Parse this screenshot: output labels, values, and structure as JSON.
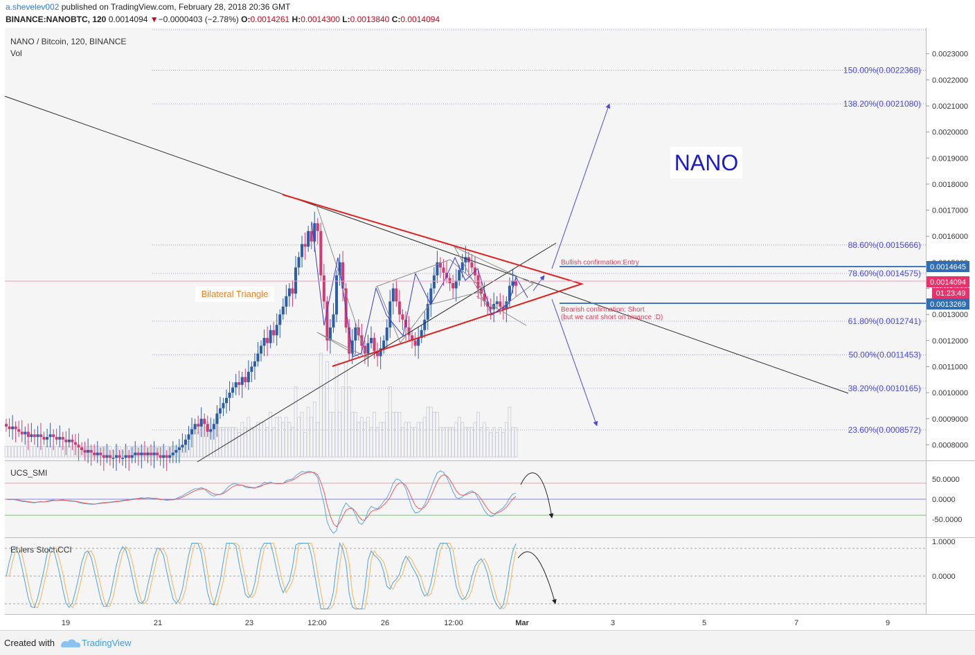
{
  "header": {
    "author": "a.shevelev002",
    "published": " published on TradingView.com, February 28, 2018 20:36 GMT",
    "symbol": "BINANCE:NANOBTC, 120",
    "last": "0.0014094",
    "change_arrow": "▼",
    "change": "−0.0000403 (−2.78%)",
    "o_label": "O:",
    "o": "0.0014261",
    "h_label": "H:",
    "h": "0.0014300",
    "l_label": "L:",
    "l": "0.0013840",
    "c_label": "C:",
    "c": "0.0014094"
  },
  "panes": {
    "main_title": "NANO / Bitcoin, 120, BINANCE",
    "vol_label": "Vol",
    "smi_label": "UCS_SMI",
    "cci_label": "Ehlers StochCCI"
  },
  "annotations": {
    "nano": "NANO",
    "triangle": "Bilateral Triangle",
    "bullish": "Bullish confirmation:Entry",
    "bearish1": "Bearish confirmation: Short",
    "bearish2": "(but we cant short on binance :D)"
  },
  "footer": {
    "created": "Created with",
    "brand": "TradingView"
  },
  "colors": {
    "up": "#2a5ea9",
    "down": "#d23a73",
    "triangle": "#e02020",
    "fib": "#4a4ad8",
    "trend": "#2a2a2a",
    "label_blue": "#2f6db5",
    "label_red": "#e8326b",
    "smi_a": "#f05a5a",
    "smi_b": "#5aa6e6"
  },
  "chart_data": [
    {
      "type": "candlestick",
      "title": "NANO / Bitcoin, 120, BINANCE",
      "x_ticks": [
        "19",
        "21",
        "23",
        "12:00",
        "26",
        "12:00",
        "Mar",
        "3",
        "5",
        "7",
        "9"
      ],
      "ylim": [
        0.00074,
        0.0024
      ],
      "y_ticks": [
        "0.0023000",
        "0.0022000",
        "0.0021000",
        "0.0020000",
        "0.0019000",
        "0.0018000",
        "0.0017000",
        "0.0016000",
        "0.0015000",
        "0.0014000",
        "0.0013000",
        "0.0012000",
        "0.0011000",
        "0.0010000",
        "0.0009000",
        "0.0008000"
      ],
      "price_labels": {
        "entry": "0.0014645",
        "last": "0.0014094",
        "countdown": "01:23:49",
        "short": "0.0013269"
      },
      "fib_levels": [
        {
          "label": "150.00%(0.0022368)",
          "value": 0.0022368
        },
        {
          "label": "138.20%(0.0021080)",
          "value": 0.002108
        },
        {
          "label": "88.60%(0.0015666)",
          "value": 0.0015666
        },
        {
          "label": "78.60%(0.0014575)",
          "value": 0.0014575
        },
        {
          "label": "61.80%(0.0012741)",
          "value": 0.0012741
        },
        {
          "label": "50.00%(0.0011453)",
          "value": 0.0011453
        },
        {
          "label": "38.20%(0.0010165)",
          "value": 0.0010165
        },
        {
          "label": "23.60%(0.0008572)",
          "value": 0.0008572
        }
      ],
      "close": [
        0.00087,
        0.00086,
        0.00087,
        0.00086,
        0.00085,
        0.00084,
        0.00085,
        0.00083,
        0.00084,
        0.00083,
        0.00084,
        0.00083,
        0.00082,
        0.00083,
        0.00084,
        0.00083,
        0.00082,
        0.00083,
        0.00082,
        0.00081,
        0.00082,
        0.00081,
        0.0008,
        0.00079,
        0.00078,
        0.00077,
        0.00078,
        0.00077,
        0.00076,
        0.00077,
        0.00076,
        0.00075,
        0.00076,
        0.00075,
        0.00075,
        0.00076,
        0.00075,
        0.00075,
        0.00076,
        0.00075,
        0.00076,
        0.00077,
        0.00076,
        0.00077,
        0.00076,
        0.00077,
        0.00076,
        0.00077,
        0.00076,
        0.00075,
        0.00076,
        0.00075,
        0.00076,
        0.00077,
        0.00078,
        0.00079,
        0.0008,
        0.00082,
        0.00084,
        0.00086,
        0.00088,
        0.00087,
        0.0009,
        0.00088,
        0.00085,
        0.00086,
        0.00088,
        0.00092,
        0.00094,
        0.00096,
        0.00098,
        0.001,
        0.00102,
        0.00104,
        0.00103,
        0.00106,
        0.00104,
        0.00108,
        0.0011,
        0.00112,
        0.00115,
        0.00118,
        0.00121,
        0.00119,
        0.00124,
        0.00122,
        0.00126,
        0.0013,
        0.00133,
        0.00137,
        0.0014,
        0.00138,
        0.00148,
        0.00152,
        0.00157,
        0.00156,
        0.00162,
        0.00158,
        0.00165,
        0.00162,
        0.00145,
        0.00135,
        0.0012,
        0.00125,
        0.0013,
        0.00145,
        0.0015,
        0.0014,
        0.00125,
        0.00115,
        0.0012,
        0.00125,
        0.00122,
        0.00118,
        0.00115,
        0.00119,
        0.00121,
        0.00116,
        0.00114,
        0.00117,
        0.0012,
        0.00125,
        0.00135,
        0.0014,
        0.00135,
        0.0013,
        0.00128,
        0.00125,
        0.00122,
        0.0012,
        0.00118,
        0.00121,
        0.00124,
        0.00128,
        0.00134,
        0.0014,
        0.00145,
        0.0015,
        0.00148,
        0.00146,
        0.00144,
        0.00142,
        0.0014,
        0.00143,
        0.00147,
        0.0015,
        0.00152,
        0.0015,
        0.00148,
        0.00145,
        0.0014,
        0.00138,
        0.00135,
        0.00133,
        0.00132,
        0.00134,
        0.00135,
        0.00133,
        0.00132,
        0.00135,
        0.00141,
        0.00143,
        0.00141
      ]
    },
    {
      "type": "line",
      "title": "UCS_SMI",
      "y_ticks": [
        "50.0000",
        "0.0000",
        "-50.0000"
      ],
      "ylim": [
        -95,
        95
      ],
      "levels": [
        40,
        0,
        -40
      ]
    },
    {
      "type": "line",
      "title": "Ehlers StochCCI",
      "y_ticks": [
        "1.0000",
        "0.0000"
      ],
      "ylim": [
        -1.0,
        1.0
      ],
      "levels": [
        0.8,
        0,
        -0.8
      ]
    }
  ]
}
